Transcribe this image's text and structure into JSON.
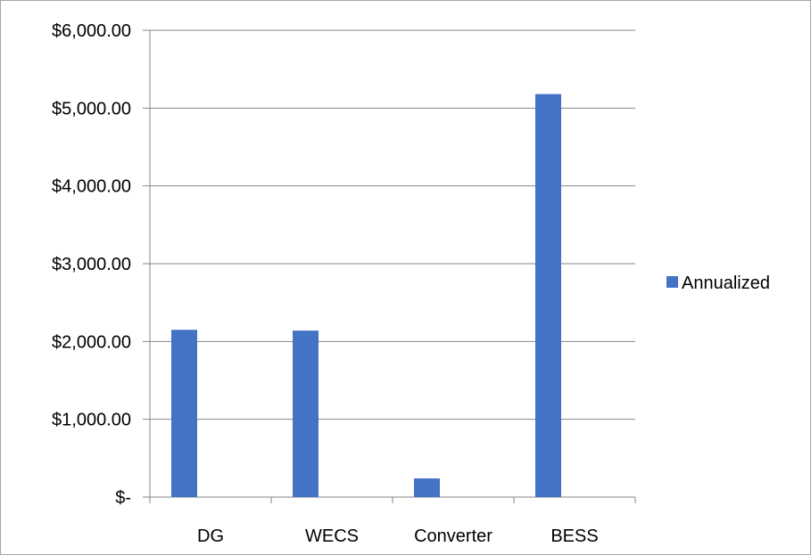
{
  "chart_data": {
    "type": "bar",
    "categories": [
      "DG",
      "WECS",
      "Converter",
      "BESS"
    ],
    "series": [
      {
        "name": "Annualized",
        "values": [
          2150,
          2140,
          240,
          5180
        ],
        "color": "#4472c4"
      }
    ],
    "y_tick_labels": [
      "$-",
      "$1,000.00",
      "$2,000.00",
      "$3,000.00",
      "$4,000.00",
      "$5,000.00",
      "$6,000.00"
    ],
    "y_ticks": [
      0,
      1000,
      2000,
      3000,
      4000,
      5000,
      6000
    ],
    "ylim": [
      0,
      6000
    ],
    "grid": true,
    "gridline_color": "#868686",
    "legend_position": "right"
  }
}
